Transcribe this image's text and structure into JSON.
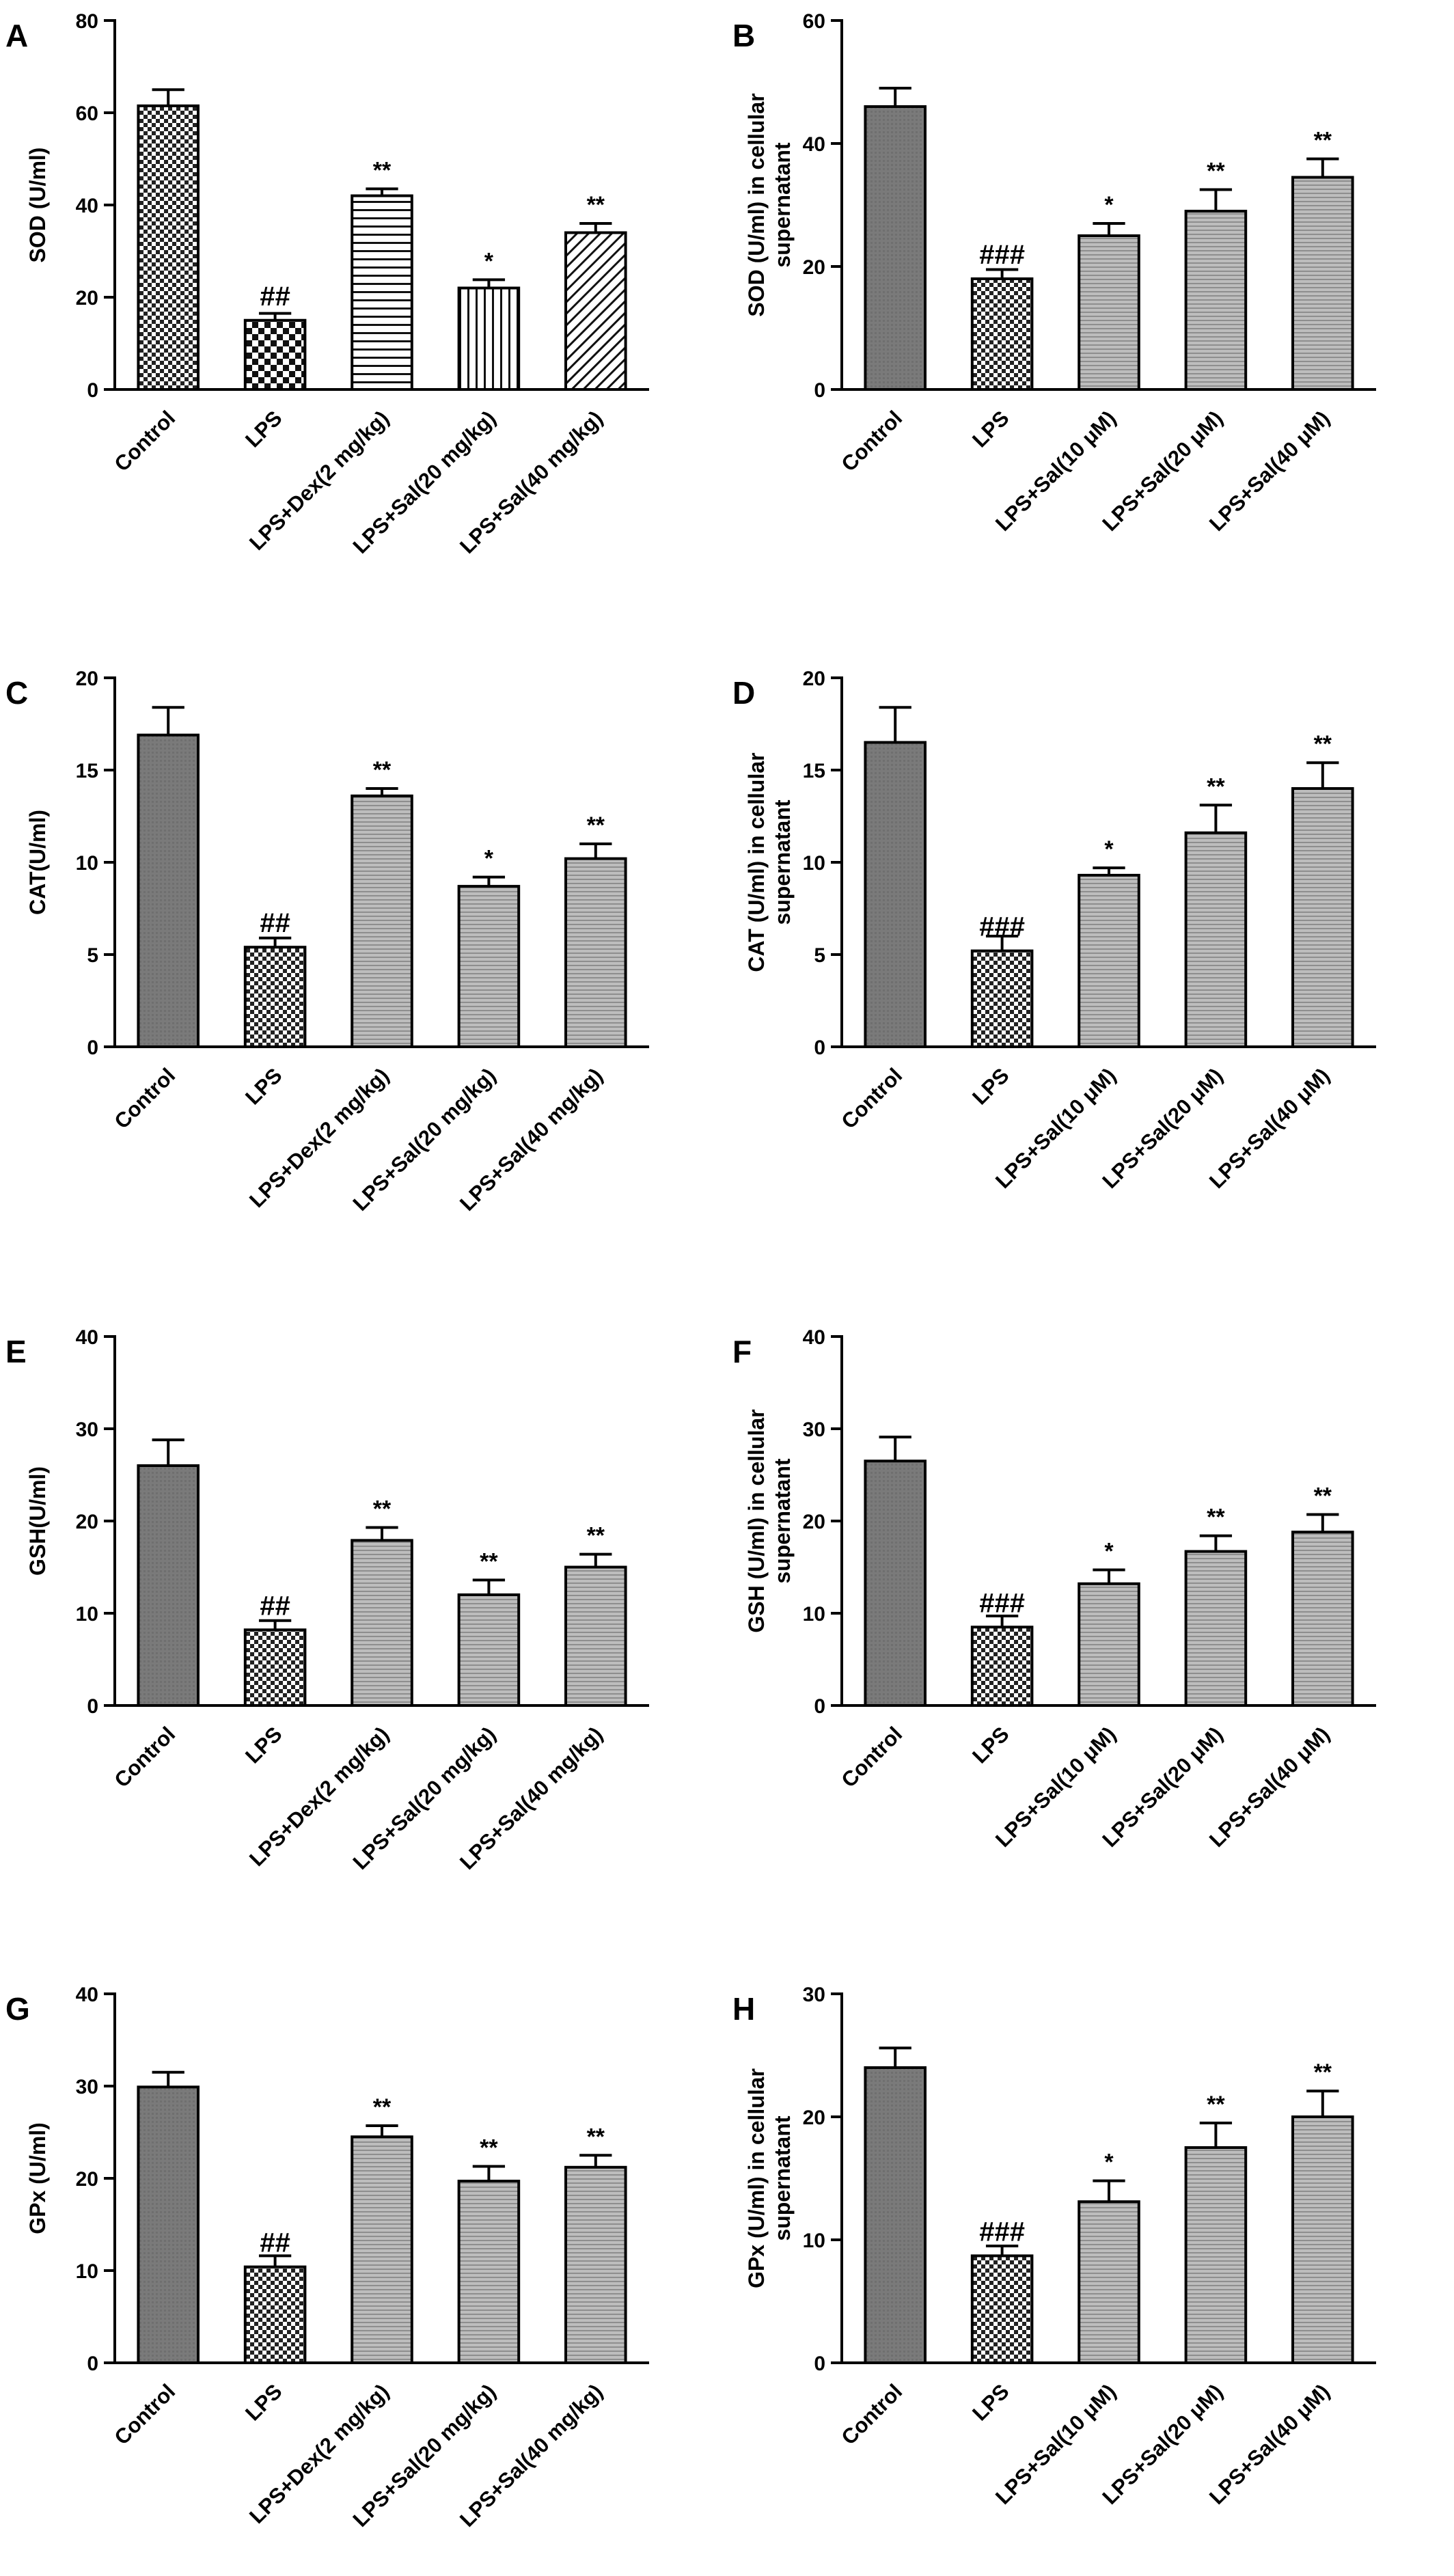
{
  "chart_data": [
    {
      "type": "bar",
      "panel": "A",
      "ylabel": [
        "SOD (U/ml)"
      ],
      "ylim": [
        0,
        80
      ],
      "yticks": [
        0,
        20,
        40,
        60,
        80
      ],
      "categories": [
        "Control",
        "LPS",
        "LPS+Dex(2 mg/kg)",
        "LPS+Sal(20 mg/kg)",
        "LPS+Sal(40 mg/kg)"
      ],
      "values": [
        61.5,
        15,
        42,
        22,
        34
      ],
      "errors": [
        3.5,
        1.5,
        1.5,
        1.8,
        2
      ],
      "annotations": [
        "",
        "##",
        "**",
        "*",
        "**"
      ],
      "patterns": [
        "check",
        "check-bold",
        "hlines",
        "vlines",
        "diag"
      ]
    },
    {
      "type": "bar",
      "panel": "B",
      "ylabel": [
        "SOD (U/ml) in cellular",
        "supernatant"
      ],
      "ylim": [
        0,
        60
      ],
      "yticks": [
        0,
        20,
        40,
        60
      ],
      "categories": [
        "Control",
        "LPS",
        "LPS+Sal(10 μM)",
        "LPS+Sal(20 μM)",
        "LPS+Sal(40 μM)"
      ],
      "values": [
        46,
        18,
        25,
        29,
        34.5
      ],
      "errors": [
        3,
        1.5,
        2,
        3.5,
        3
      ],
      "annotations": [
        "",
        "###",
        "*",
        "**",
        "**"
      ],
      "patterns": [
        "dark",
        "check",
        "lightgrey",
        "lightgrey",
        "lightgrey"
      ]
    },
    {
      "type": "bar",
      "panel": "C",
      "ylabel": [
        "CAT(U/ml)"
      ],
      "ylim": [
        0,
        20
      ],
      "yticks": [
        0,
        5,
        10,
        15,
        20
      ],
      "categories": [
        "Control",
        "LPS",
        "LPS+Dex(2 mg/kg)",
        "LPS+Sal(20 mg/kg)",
        "LPS+Sal(40 mg/kg)"
      ],
      "values": [
        16.9,
        5.4,
        13.6,
        8.7,
        10.2
      ],
      "errors": [
        1.5,
        0.5,
        0.4,
        0.5,
        0.8
      ],
      "annotations": [
        "",
        "##",
        "**",
        "*",
        "**"
      ],
      "patterns": [
        "dark",
        "check",
        "lightgrey",
        "lightgrey",
        "lightgrey"
      ]
    },
    {
      "type": "bar",
      "panel": "D",
      "ylabel": [
        "CAT (U/ml) in cellular",
        "supernatant"
      ],
      "ylim": [
        0,
        20
      ],
      "yticks": [
        0,
        5,
        10,
        15,
        20
      ],
      "categories": [
        "Control",
        "LPS",
        "LPS+Sal(10 μM)",
        "LPS+Sal(20 μM)",
        "LPS+Sal(40 μM)"
      ],
      "values": [
        16.5,
        5.2,
        9.3,
        11.6,
        14
      ],
      "errors": [
        1.9,
        0.8,
        0.4,
        1.5,
        1.4
      ],
      "annotations": [
        "",
        "###",
        "*",
        "**",
        "**"
      ],
      "patterns": [
        "dark",
        "check",
        "lightgrey",
        "lightgrey",
        "lightgrey"
      ]
    },
    {
      "type": "bar",
      "panel": "E",
      "ylabel": [
        "GSH(U/ml)"
      ],
      "ylim": [
        0,
        40
      ],
      "yticks": [
        0,
        10,
        20,
        30,
        40
      ],
      "categories": [
        "Control",
        "LPS",
        "LPS+Dex(2 mg/kg)",
        "LPS+Sal(20 mg/kg)",
        "LPS+Sal(40 mg/kg)"
      ],
      "values": [
        26,
        8.2,
        17.9,
        12,
        15
      ],
      "errors": [
        2.8,
        1,
        1.4,
        1.6,
        1.4
      ],
      "annotations": [
        "",
        "##",
        "**",
        "**",
        "**"
      ],
      "patterns": [
        "dark",
        "check",
        "lightgrey",
        "lightgrey",
        "lightgrey"
      ]
    },
    {
      "type": "bar",
      "panel": "F",
      "ylabel": [
        "GSH (U/ml) in cellular",
        "supernatant"
      ],
      "ylim": [
        0,
        40
      ],
      "yticks": [
        0,
        10,
        20,
        30,
        40
      ],
      "categories": [
        "Control",
        "LPS",
        "LPS+Sal(10 μM)",
        "LPS+Sal(20 μM)",
        "LPS+Sal(40 μM)"
      ],
      "values": [
        26.5,
        8.5,
        13.2,
        16.7,
        18.8
      ],
      "errors": [
        2.6,
        1.2,
        1.5,
        1.7,
        1.9
      ],
      "annotations": [
        "",
        "###",
        "*",
        "**",
        "**"
      ],
      "patterns": [
        "dark",
        "check",
        "lightgrey",
        "lightgrey",
        "lightgrey"
      ]
    },
    {
      "type": "bar",
      "panel": "G",
      "ylabel": [
        "GPx (U/ml)"
      ],
      "ylim": [
        0,
        40
      ],
      "yticks": [
        0,
        10,
        20,
        30,
        40
      ],
      "categories": [
        "Control",
        "LPS",
        "LPS+Dex(2 mg/kg)",
        "LPS+Sal(20 mg/kg)",
        "LPS+Sal(40 mg/kg)"
      ],
      "values": [
        29.9,
        10.4,
        24.5,
        19.7,
        21.2
      ],
      "errors": [
        1.6,
        1.2,
        1.2,
        1.6,
        1.3
      ],
      "annotations": [
        "",
        "##",
        "**",
        "**",
        "**"
      ],
      "patterns": [
        "dark",
        "check",
        "lightgrey",
        "lightgrey",
        "lightgrey"
      ]
    },
    {
      "type": "bar",
      "panel": "H",
      "ylabel": [
        "GPx (U/ml) in cellular",
        "supernatant"
      ],
      "ylim": [
        0,
        30
      ],
      "yticks": [
        0,
        10,
        20,
        30
      ],
      "categories": [
        "Control",
        "LPS",
        "LPS+Sal(10 μM)",
        "LPS+Sal(20 μM)",
        "LPS+Sal(40 μM)"
      ],
      "values": [
        24,
        8.7,
        13.1,
        17.5,
        20
      ],
      "errors": [
        1.6,
        0.8,
        1.7,
        2,
        2.1
      ],
      "annotations": [
        "",
        "###",
        "*",
        "**",
        "**"
      ],
      "patterns": [
        "dark",
        "check",
        "lightgrey",
        "lightgrey",
        "lightgrey"
      ]
    }
  ]
}
